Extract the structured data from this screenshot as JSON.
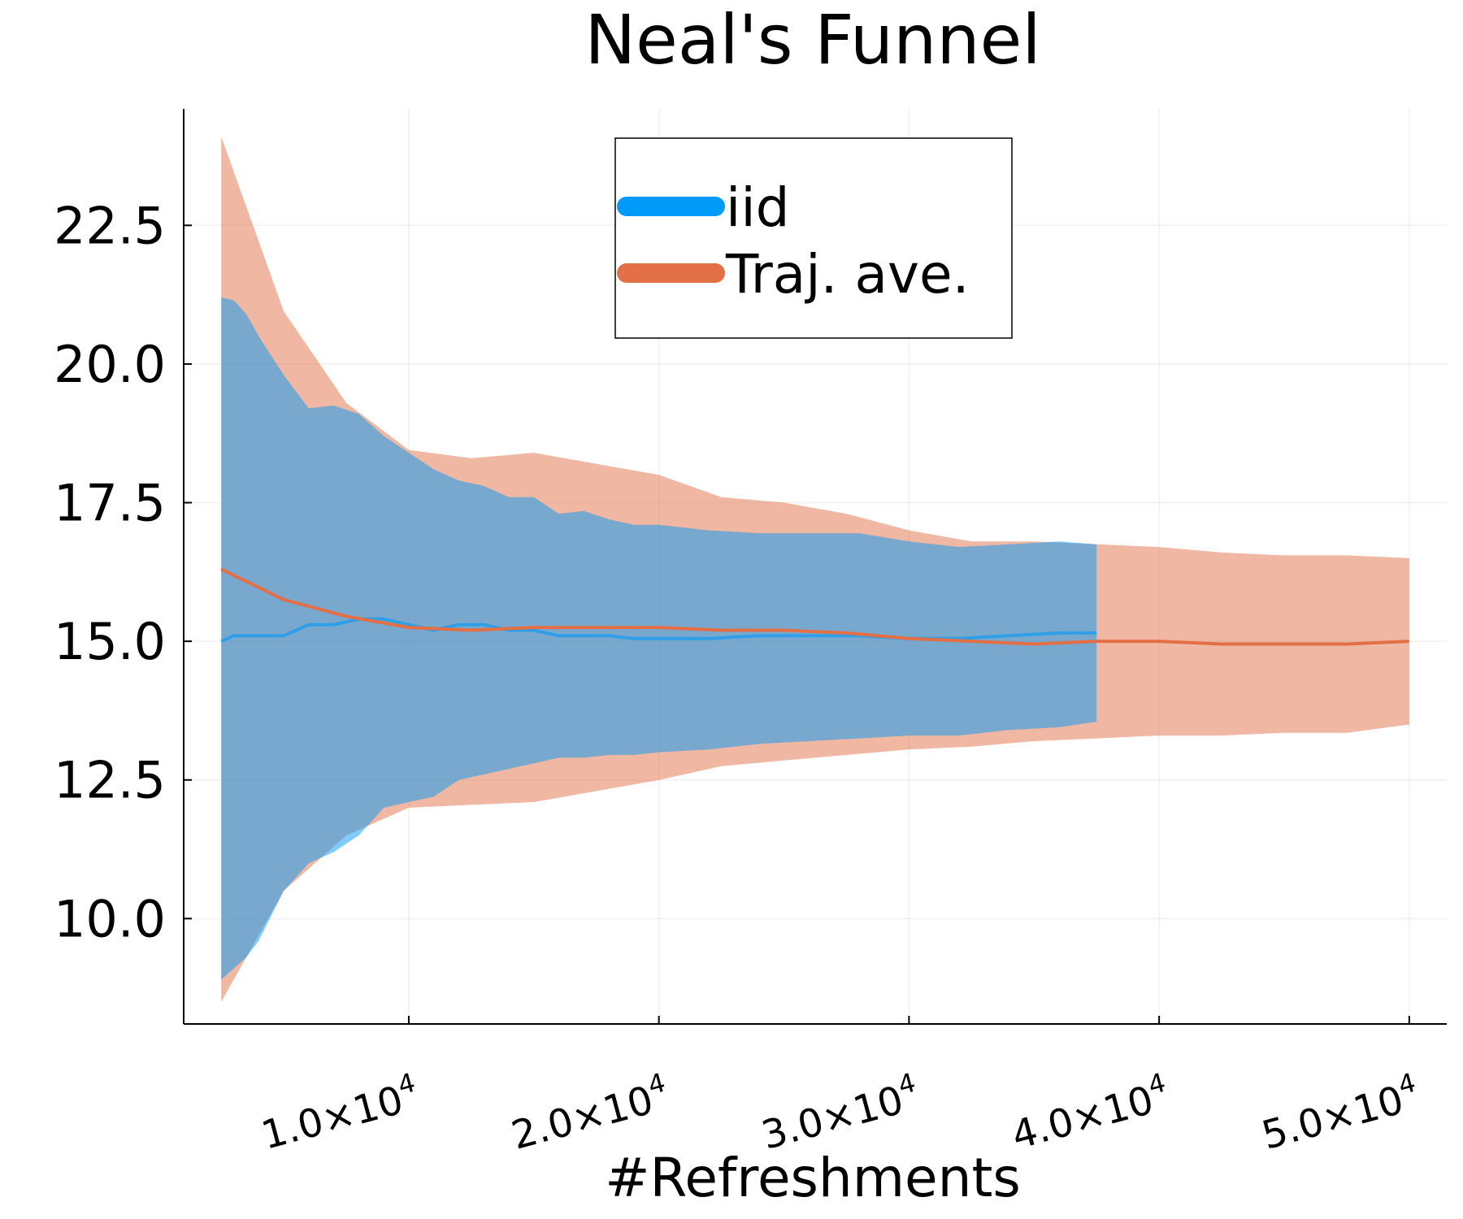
{
  "chart_data": {
    "type": "area",
    "title": "Neal's Funnel",
    "xlabel": "#Refreshments",
    "ylabel": "",
    "xlim": [
      1000,
      51500
    ],
    "ylim": [
      8.1,
      24.6
    ],
    "grid": true,
    "legend_position": "top-center",
    "yticks": [
      {
        "value": 10.0,
        "label": "10.0"
      },
      {
        "value": 12.5,
        "label": "12.5"
      },
      {
        "value": 15.0,
        "label": "15.0"
      },
      {
        "value": 17.5,
        "label": "17.5"
      },
      {
        "value": 20.0,
        "label": "20.0"
      },
      {
        "value": 22.5,
        "label": "22.5"
      }
    ],
    "xticks": [
      {
        "value": 10000,
        "mantissa": "1.0×10",
        "exponent": "4"
      },
      {
        "value": 20000,
        "mantissa": "2.0×10",
        "exponent": "4"
      },
      {
        "value": 30000,
        "mantissa": "3.0×10",
        "exponent": "4"
      },
      {
        "value": 40000,
        "mantissa": "4.0×10",
        "exponent": "4"
      },
      {
        "value": 50000,
        "mantissa": "5.0×10",
        "exponent": "4"
      }
    ],
    "series": [
      {
        "name": "iid",
        "color": "#009AF9",
        "fill_color": "#009AF9",
        "x": [
          2500,
          3000,
          3500,
          4000,
          5000,
          6000,
          7000,
          8000,
          9000,
          10000,
          11000,
          12000,
          13000,
          14000,
          15000,
          16000,
          17000,
          18000,
          19000,
          20000,
          22000,
          24000,
          26000,
          28000,
          30000,
          32000,
          34000,
          36000,
          37500
        ],
        "mean": [
          15.0,
          15.1,
          15.1,
          15.1,
          15.1,
          15.3,
          15.3,
          15.4,
          15.4,
          15.3,
          15.2,
          15.3,
          15.3,
          15.2,
          15.2,
          15.1,
          15.1,
          15.1,
          15.05,
          15.05,
          15.05,
          15.1,
          15.1,
          15.1,
          15.05,
          15.05,
          15.1,
          15.15,
          15.15
        ],
        "upper": [
          21.2,
          21.15,
          20.9,
          20.5,
          19.8,
          19.2,
          19.25,
          19.1,
          18.7,
          18.4,
          18.1,
          17.9,
          17.8,
          17.6,
          17.6,
          17.3,
          17.35,
          17.2,
          17.1,
          17.1,
          17.0,
          16.95,
          16.95,
          16.95,
          16.8,
          16.7,
          16.75,
          16.8,
          16.75
        ],
        "lower": [
          8.9,
          9.1,
          9.3,
          9.6,
          10.5,
          11.0,
          11.2,
          11.5,
          12.0,
          12.1,
          12.2,
          12.5,
          12.6,
          12.7,
          12.8,
          12.9,
          12.9,
          12.95,
          12.95,
          13.0,
          13.05,
          13.15,
          13.2,
          13.25,
          13.3,
          13.3,
          13.4,
          13.45,
          13.55
        ]
      },
      {
        "name": "Traj. ave.",
        "color": "#E26F46",
        "fill_color": "#E26F46",
        "x": [
          2500,
          5000,
          7500,
          10000,
          12500,
          15000,
          17500,
          20000,
          22500,
          25000,
          27500,
          30000,
          32500,
          35000,
          37500,
          40000,
          42500,
          45000,
          47500,
          50000
        ],
        "mean": [
          16.3,
          15.75,
          15.45,
          15.25,
          15.2,
          15.25,
          15.25,
          15.25,
          15.2,
          15.2,
          15.15,
          15.05,
          15.0,
          14.95,
          15.0,
          15.0,
          14.95,
          14.95,
          14.95,
          15.0
        ],
        "upper": [
          24.1,
          20.95,
          19.3,
          18.45,
          18.3,
          18.4,
          18.2,
          18.0,
          17.6,
          17.5,
          17.3,
          17.0,
          16.8,
          16.8,
          16.75,
          16.7,
          16.6,
          16.55,
          16.55,
          16.5
        ],
        "lower": [
          8.5,
          10.5,
          11.5,
          12.0,
          12.05,
          12.1,
          12.3,
          12.5,
          12.75,
          12.85,
          12.95,
          13.05,
          13.1,
          13.2,
          13.25,
          13.3,
          13.3,
          13.35,
          13.35,
          13.5
        ]
      }
    ]
  }
}
